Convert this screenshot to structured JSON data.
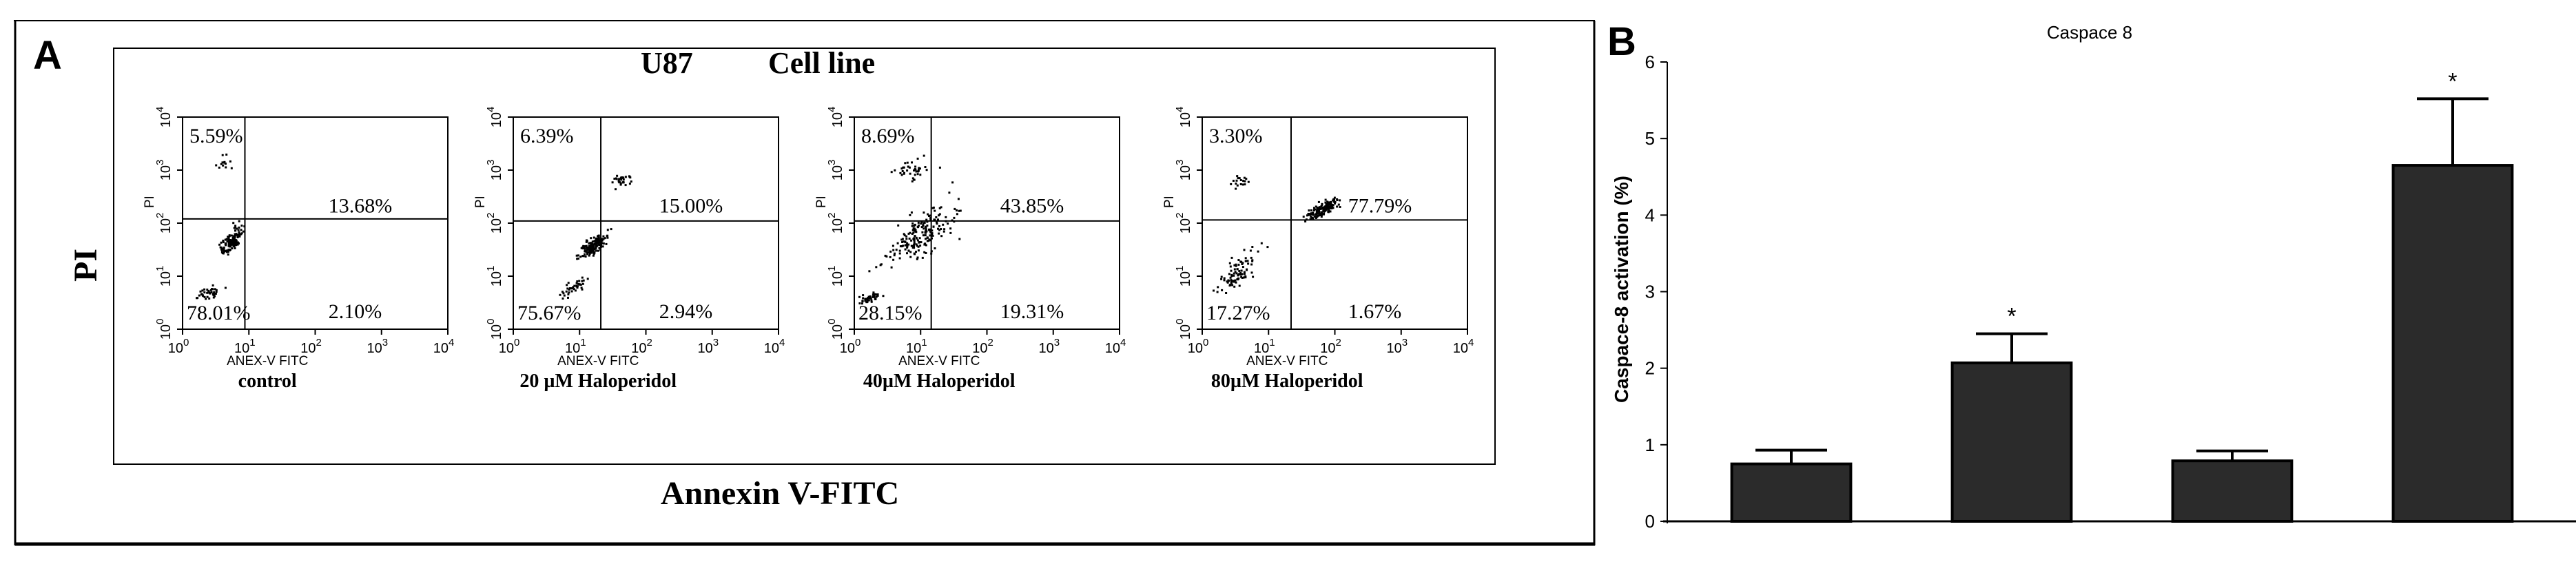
{
  "panel_a": {
    "letter": "A",
    "title_left": "U87",
    "title_right": "Cell line",
    "y_axis_label": "PI",
    "x_axis_label": "Annexin V-FITC",
    "plots": [
      {
        "sub_xlabel": "ANEX-V FITC",
        "sub_ylabel": "PI",
        "caption": "control",
        "quadrants": {
          "upper_left": "5.59%",
          "upper_right": "13.68%",
          "lower_left": "78.01%",
          "lower_right": "2.10%"
        }
      },
      {
        "sub_xlabel": "ANEX-V FITC",
        "sub_ylabel": "PI",
        "caption": "20 µM Haloperidol",
        "quadrants": {
          "upper_left": "6.39%",
          "upper_right": "15.00%",
          "lower_left": "75.67%",
          "lower_right": "2.94%"
        }
      },
      {
        "sub_xlabel": "ANEX-V FITC",
        "sub_ylabel": "PI",
        "caption": "40µM Haloperidol",
        "quadrants": {
          "upper_left": "8.69%",
          "upper_right": "43.85%",
          "lower_left": "28.15%",
          "lower_right": "19.31%"
        }
      },
      {
        "sub_xlabel": "ANEX-V FITC",
        "sub_ylabel": "PI",
        "caption": "80µM Haloperidol",
        "quadrants": {
          "upper_left": "3.30%",
          "upper_right": "77.79%",
          "lower_left": "17.27%",
          "lower_right": "1.67%"
        }
      }
    ],
    "tick_labels": {
      "x": [
        [
          "10",
          "0"
        ],
        [
          "10",
          "1"
        ],
        [
          "10",
          "2"
        ],
        [
          "10",
          "3"
        ],
        [
          "10",
          "4"
        ]
      ],
      "y": [
        [
          "10",
          "0"
        ],
        [
          "10",
          "1"
        ],
        [
          "10",
          "2"
        ],
        [
          "10",
          "3"
        ],
        [
          "10",
          "4"
        ]
      ]
    }
  },
  "chart_data": {
    "type": "bar",
    "panel_letter": "B",
    "title": "Caspace 8",
    "xlabel": "",
    "ylabel": "Caspace-8 activation (%)",
    "ylim": [
      0,
      6
    ],
    "yticks": [
      "0",
      "1",
      "2",
      "3",
      "4",
      "5",
      "6"
    ],
    "categories": [
      "",
      "",
      "",
      ""
    ],
    "values": [
      0.75,
      2.07,
      0.79,
      4.65
    ],
    "errors": [
      0.18,
      0.38,
      0.13,
      0.87
    ],
    "significance": [
      "",
      "*",
      "",
      "*"
    ],
    "bar_color": "#2b2b2b",
    "grid": false
  }
}
